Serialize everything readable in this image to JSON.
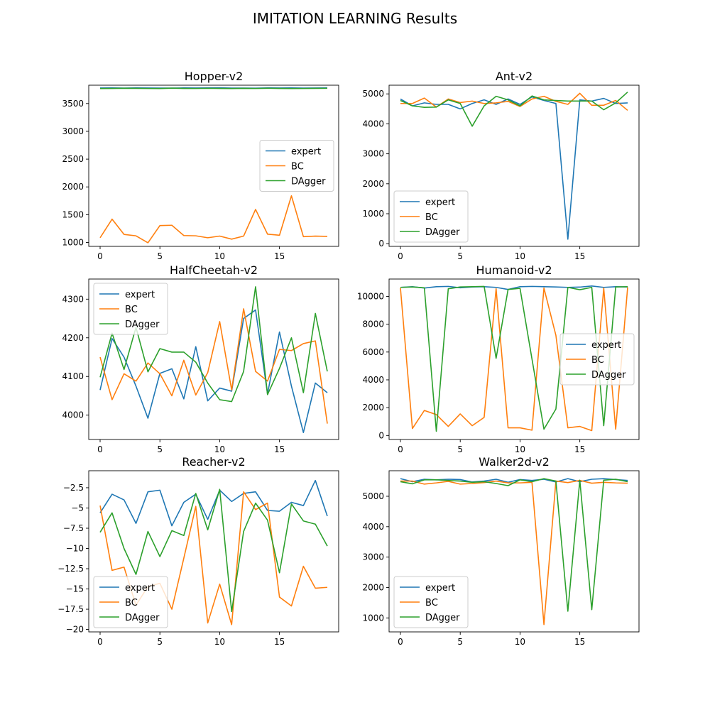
{
  "figure": {
    "title": "IMITATION LEARNING Results"
  },
  "series_colors": {
    "expert": "#1f77b4",
    "BC": "#ff7f0e",
    "DAgger": "#2ca02c"
  },
  "chart_data": [
    {
      "type": "line",
      "title": "Hopper-v2",
      "x": [
        0,
        1,
        2,
        3,
        4,
        5,
        6,
        7,
        8,
        9,
        10,
        11,
        12,
        13,
        14,
        15,
        16,
        17,
        18,
        19
      ],
      "xticks": [
        0,
        5,
        10,
        15
      ],
      "ylim": [
        930,
        3830
      ],
      "yticks": [
        1000,
        1500,
        2000,
        2500,
        3000,
        3500
      ],
      "legend": "center-right",
      "series": [
        {
          "name": "expert",
          "values": [
            3780,
            3781,
            3779,
            3782,
            3780,
            3778,
            3779,
            3781,
            3780,
            3782,
            3783,
            3779,
            3778,
            3777,
            3781,
            3780,
            3782,
            3779,
            3780,
            3781
          ]
        },
        {
          "name": "BC",
          "values": [
            1085,
            1420,
            1145,
            1120,
            995,
            1305,
            1310,
            1125,
            1120,
            1085,
            1115,
            1060,
            1115,
            1595,
            1150,
            1130,
            1840,
            1105,
            1115,
            1110
          ]
        },
        {
          "name": "DAgger",
          "values": [
            3770,
            3772,
            3775,
            3773,
            3771,
            3770,
            3776,
            3772,
            3771,
            3774,
            3772,
            3770,
            3773,
            3771,
            3775,
            3772,
            3770,
            3771,
            3773,
            3774
          ]
        }
      ]
    },
    {
      "type": "line",
      "title": "Ant-v2",
      "x": [
        0,
        1,
        2,
        3,
        4,
        5,
        6,
        7,
        8,
        9,
        10,
        11,
        12,
        13,
        14,
        15,
        16,
        17,
        18,
        19
      ],
      "xticks": [
        0,
        5,
        10,
        15
      ],
      "ylim": [
        -90,
        5290
      ],
      "yticks": [
        0,
        1000,
        2000,
        3000,
        4000,
        5000
      ],
      "legend": "lower-left",
      "series": [
        {
          "name": "expert",
          "values": [
            4830,
            4600,
            4700,
            4650,
            4650,
            4500,
            4680,
            4800,
            4650,
            4830,
            4650,
            4900,
            4780,
            4680,
            150,
            4800,
            4760,
            4850,
            4680,
            4700
          ]
        },
        {
          "name": "BC",
          "values": [
            4680,
            4680,
            4860,
            4560,
            4830,
            4710,
            4760,
            4680,
            4700,
            4750,
            4580,
            4830,
            4920,
            4750,
            4650,
            5020,
            4620,
            4620,
            4780,
            4450
          ]
        },
        {
          "name": "DAgger",
          "values": [
            4780,
            4600,
            4550,
            4560,
            4800,
            4680,
            3920,
            4600,
            4920,
            4800,
            4600,
            4930,
            4800,
            4780,
            4760,
            4760,
            4760,
            4470,
            4700,
            5060
          ]
        }
      ]
    },
    {
      "type": "line",
      "title": "HalfCheetah-v2",
      "x": [
        0,
        1,
        2,
        3,
        4,
        5,
        6,
        7,
        8,
        9,
        10,
        11,
        12,
        13,
        14,
        15,
        16,
        17,
        18,
        19
      ],
      "xticks": [
        0,
        5,
        10,
        15
      ],
      "ylim": [
        3937,
        4352
      ],
      "yticks": [
        4000,
        4100,
        4200,
        4300
      ],
      "legend": "upper-left",
      "series": [
        {
          "name": "expert",
          "values": [
            4065,
            4198,
            4150,
            4075,
            3992,
            4108,
            4120,
            4042,
            4177,
            4037,
            4070,
            4062,
            4250,
            4272,
            4055,
            4215,
            4075,
            3955,
            4083,
            4058
          ]
        },
        {
          "name": "BC",
          "values": [
            4150,
            4040,
            4107,
            4088,
            4135,
            4107,
            4050,
            4142,
            4052,
            4110,
            4242,
            4065,
            4275,
            4113,
            4088,
            4170,
            4167,
            4185,
            4192,
            3978
          ]
        },
        {
          "name": "DAgger",
          "values": [
            4098,
            4212,
            4118,
            4227,
            4112,
            4172,
            4163,
            4163,
            4137,
            4083,
            4040,
            4035,
            4113,
            4332,
            4053,
            4121,
            4200,
            4058,
            4263,
            4113
          ]
        }
      ]
    },
    {
      "type": "line",
      "title": "Humanoid-v2",
      "x": [
        0,
        1,
        2,
        3,
        4,
        5,
        6,
        7,
        8,
        9,
        10,
        11,
        12,
        13,
        14,
        15,
        16,
        17,
        18,
        19
      ],
      "xticks": [
        0,
        5,
        10,
        15
      ],
      "ylim": [
        -290,
        11250
      ],
      "yticks": [
        0,
        2000,
        4000,
        6000,
        8000,
        10000
      ],
      "legend": "center-right",
      "series": [
        {
          "name": "expert",
          "values": [
            10650,
            10700,
            10600,
            10700,
            10720,
            10620,
            10680,
            10700,
            10650,
            10500,
            10700,
            10720,
            10700,
            10680,
            10650,
            10670,
            10750,
            10650,
            10700,
            10680
          ]
        },
        {
          "name": "BC",
          "values": [
            10600,
            500,
            1800,
            1500,
            650,
            1550,
            700,
            1300,
            10550,
            550,
            550,
            380,
            10600,
            7200,
            550,
            650,
            350,
            10600,
            450,
            10650
          ]
        },
        {
          "name": "DAgger",
          "values": [
            10650,
            10680,
            10620,
            300,
            10550,
            10680,
            10700,
            10720,
            5550,
            10500,
            10580,
            5500,
            450,
            1900,
            10650,
            10480,
            10650,
            700,
            10680,
            10700
          ]
        }
      ]
    },
    {
      "type": "line",
      "title": "Reacher-v2",
      "x": [
        0,
        1,
        2,
        3,
        4,
        5,
        6,
        7,
        8,
        9,
        10,
        11,
        12,
        13,
        14,
        15,
        16,
        17,
        18,
        19
      ],
      "xticks": [
        0,
        5,
        10,
        15
      ],
      "ylim": [
        -20.3,
        -0.4
      ],
      "yticks": [
        -20.0,
        -17.5,
        -15.0,
        -12.5,
        -10.0,
        -7.5,
        -5.0,
        -2.5
      ],
      "legend": "lower-left",
      "series": [
        {
          "name": "expert",
          "values": [
            -5.6,
            -3.3,
            -4.0,
            -6.9,
            -3.0,
            -2.8,
            -7.2,
            -4.3,
            -3.3,
            -6.4,
            -2.8,
            -4.2,
            -3.2,
            -3.0,
            -5.3,
            -5.4,
            -4.3,
            -4.7,
            -1.6,
            -6.0
          ]
        },
        {
          "name": "BC",
          "values": [
            -4.7,
            -12.7,
            -12.3,
            -17.0,
            -14.7,
            -14.3,
            -17.5,
            -11.2,
            -4.8,
            -19.2,
            -14.4,
            -19.4,
            -3.0,
            -5.2,
            -4.4,
            -16.0,
            -17.1,
            -12.2,
            -14.9,
            -14.8
          ]
        },
        {
          "name": "DAgger",
          "values": [
            -8.0,
            -5.6,
            -10.0,
            -13.2,
            -7.9,
            -11.0,
            -7.8,
            -8.4,
            -3.2,
            -7.7,
            -2.7,
            -17.8,
            -7.9,
            -4.4,
            -6.5,
            -13.0,
            -4.5,
            -6.6,
            -7.0,
            -9.7
          ]
        }
      ]
    },
    {
      "type": "line",
      "title": "Walker2d-v2",
      "x": [
        0,
        1,
        2,
        3,
        4,
        5,
        6,
        7,
        8,
        9,
        10,
        11,
        12,
        13,
        14,
        15,
        16,
        17,
        18,
        19
      ],
      "xticks": [
        0,
        5,
        10,
        15
      ],
      "ylim": [
        540,
        5840
      ],
      "yticks": [
        1000,
        2000,
        3000,
        4000,
        5000
      ],
      "legend": "lower-left",
      "series": [
        {
          "name": "expert",
          "values": [
            5580,
            5480,
            5560,
            5540,
            5560,
            5550,
            5470,
            5500,
            5560,
            5460,
            5550,
            5520,
            5560,
            5470,
            5580,
            5480,
            5560,
            5580,
            5550,
            5520
          ]
        },
        {
          "name": "BC",
          "values": [
            5500,
            5500,
            5400,
            5440,
            5490,
            5400,
            5420,
            5450,
            5500,
            5440,
            5440,
            5460,
            780,
            5500,
            5450,
            5520,
            5430,
            5460,
            5440,
            5430
          ]
        },
        {
          "name": "DAgger",
          "values": [
            5480,
            5410,
            5540,
            5540,
            5520,
            5500,
            5460,
            5480,
            5420,
            5350,
            5540,
            5480,
            5580,
            5500,
            1220,
            5530,
            1270,
            5530,
            5560,
            5480
          ]
        }
      ]
    }
  ]
}
